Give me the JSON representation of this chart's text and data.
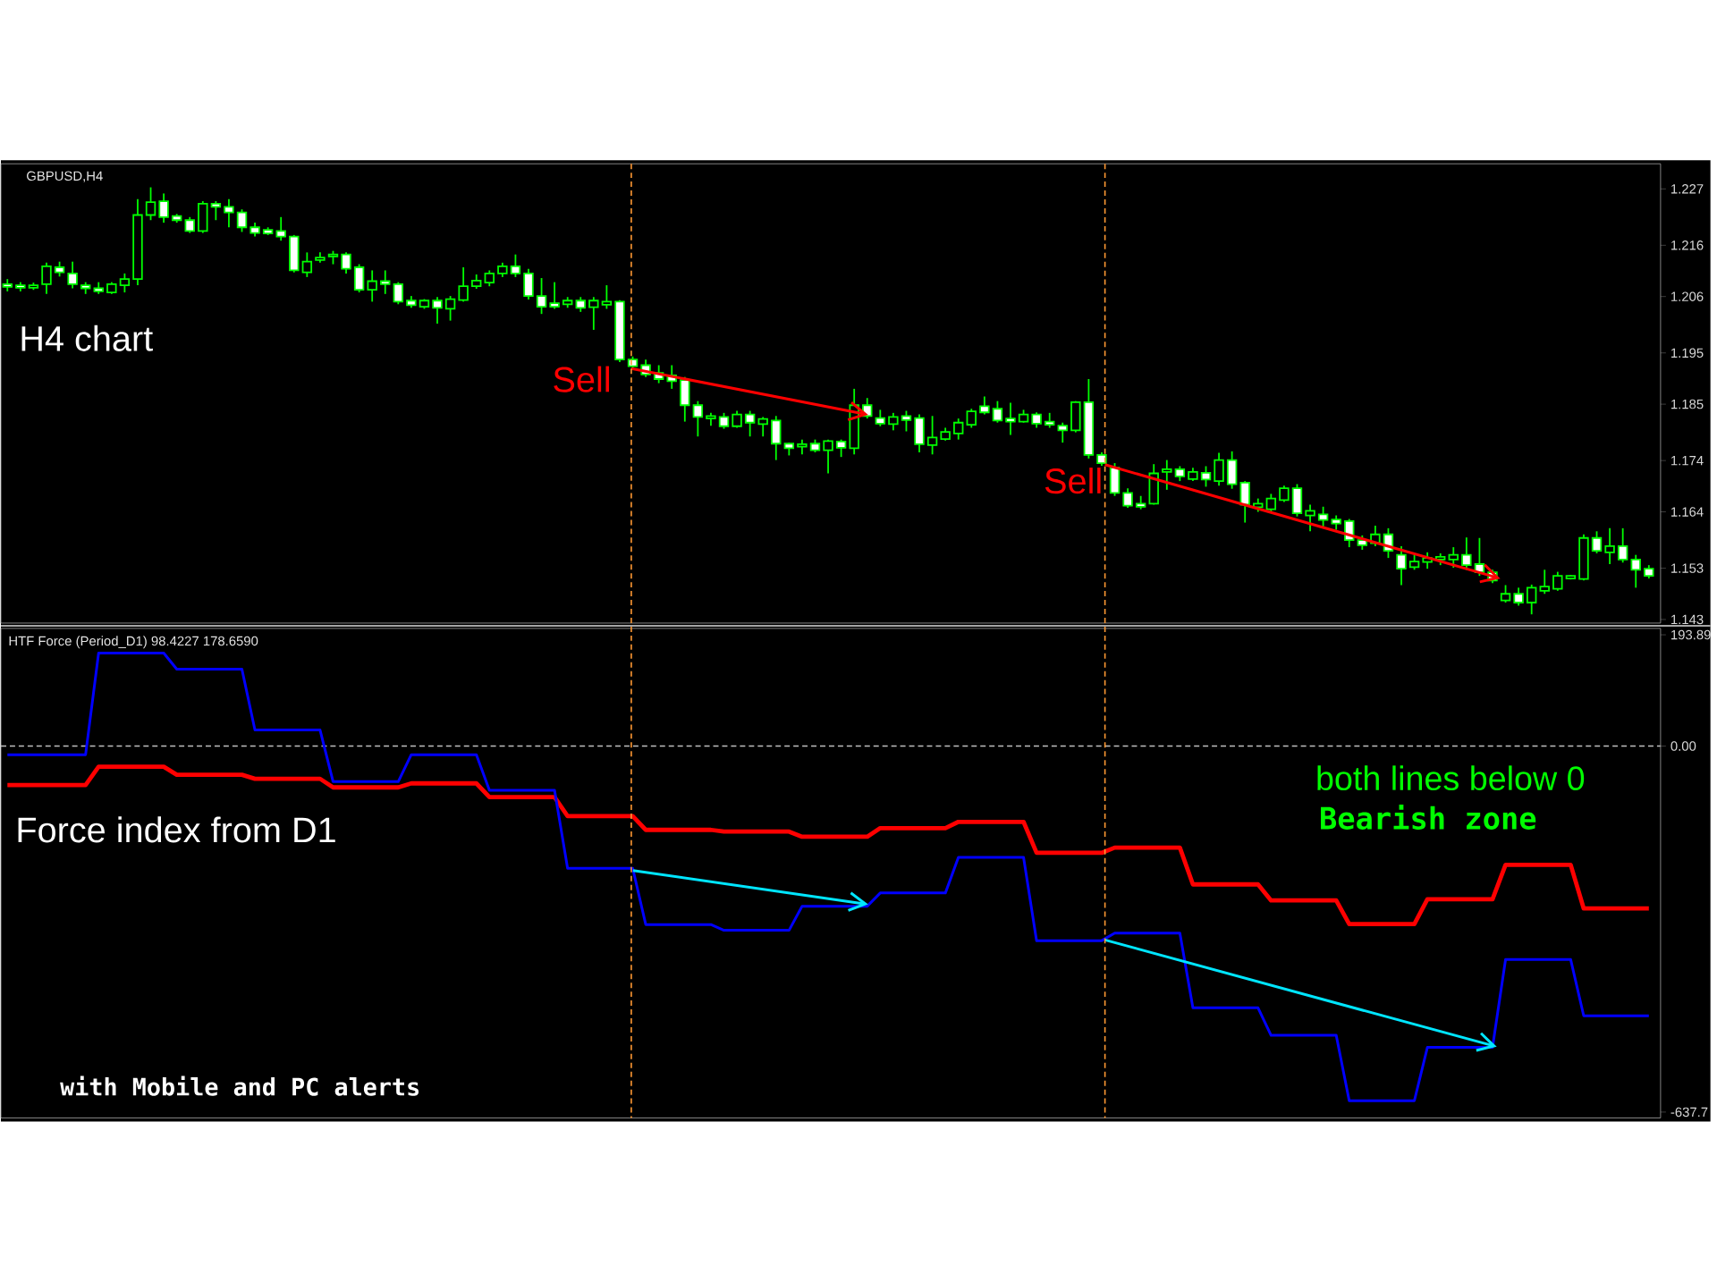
{
  "chart_data": [
    {
      "type": "candlestick",
      "title": "GBPUSD,H4",
      "color": "#00ff00",
      "categories": [
        null,
        null,
        null,
        null,
        null,
        null,
        null,
        null,
        null,
        null,
        null,
        null,
        null,
        null,
        null,
        null,
        null,
        null,
        null,
        null,
        null,
        null,
        null,
        null,
        null,
        null,
        null,
        null,
        null,
        null,
        null,
        null,
        null,
        null,
        null,
        null,
        null,
        null,
        null,
        null,
        null,
        null,
        null,
        null,
        null,
        null,
        null,
        null,
        null,
        null,
        null,
        null,
        null,
        null,
        null,
        null,
        null,
        null,
        null,
        null,
        null,
        null,
        null,
        null,
        null,
        null,
        null,
        null,
        null,
        null,
        null,
        null,
        null,
        null,
        null,
        null,
        null,
        null,
        null,
        null,
        null,
        null,
        null,
        null,
        null,
        null,
        null,
        null,
        null,
        null,
        null,
        null,
        null,
        null,
        null,
        null,
        null,
        null,
        null,
        null,
        null,
        null,
        null,
        null,
        null,
        null,
        null,
        null,
        null,
        null,
        null,
        null,
        null,
        null,
        null,
        null,
        null,
        null,
        null,
        null,
        null,
        null,
        null,
        null,
        null,
        null,
        null
      ],
      "ohlc": [
        [
          1.2084,
          1.2094,
          1.207,
          1.2079
        ],
        [
          1.2082,
          1.2088,
          1.207,
          1.2077
        ],
        [
          1.2077,
          1.2087,
          1.2073,
          1.2082
        ],
        [
          1.2084,
          1.2126,
          1.2065,
          1.2119
        ],
        [
          1.2117,
          1.2128,
          1.2099,
          1.2107
        ],
        [
          1.2105,
          1.2128,
          1.2076,
          1.2084
        ],
        [
          1.2082,
          1.2088,
          1.2065,
          1.2076
        ],
        [
          1.2076,
          1.2088,
          1.2065,
          1.207
        ],
        [
          1.2068,
          1.2088,
          1.2065,
          1.2084
        ],
        [
          1.2082,
          1.2105,
          1.2068,
          1.2094
        ],
        [
          1.2094,
          1.225,
          1.2082,
          1.2219
        ],
        [
          1.2219,
          1.2273,
          1.2209,
          1.2244
        ],
        [
          1.2246,
          1.2261,
          1.2204,
          1.2215
        ],
        [
          1.2217,
          1.2221,
          1.2204,
          1.2209
        ],
        [
          1.2209,
          1.2215,
          1.2184,
          1.2188
        ],
        [
          1.2188,
          1.2246,
          1.2184,
          1.2241
        ],
        [
          1.2241,
          1.2246,
          1.2209,
          1.2235
        ],
        [
          1.2235,
          1.225,
          1.2195,
          1.2224
        ],
        [
          1.2224,
          1.223,
          1.2186,
          1.2195
        ],
        [
          1.2195,
          1.2204,
          1.2177,
          1.2184
        ],
        [
          1.219,
          1.2195,
          1.218,
          1.2183
        ],
        [
          1.2188,
          1.2215,
          1.2169,
          1.2177
        ],
        [
          1.2177,
          1.218,
          1.2107,
          1.2111
        ],
        [
          1.2107,
          1.2146,
          1.2098,
          1.2128
        ],
        [
          1.2131,
          1.2146,
          1.2126,
          1.2136
        ],
        [
          1.2138,
          1.2149,
          1.2123,
          1.2142
        ],
        [
          1.2142,
          1.2146,
          1.2105,
          1.2114
        ],
        [
          1.2117,
          1.2123,
          1.2068,
          1.2073
        ],
        [
          1.2073,
          1.2111,
          1.205,
          1.209
        ],
        [
          1.209,
          1.2111,
          1.2065,
          1.2084
        ],
        [
          1.2084,
          1.2088,
          1.2045,
          1.205
        ],
        [
          1.2052,
          1.2061,
          1.2038,
          1.2043
        ],
        [
          1.204,
          1.2055,
          1.2036,
          1.2052
        ],
        [
          1.2052,
          1.2059,
          1.2007,
          1.2038
        ],
        [
          1.2036,
          1.2061,
          1.2013,
          1.2055
        ],
        [
          1.2053,
          1.2117,
          1.205,
          1.208
        ],
        [
          1.208,
          1.2103,
          1.2075,
          1.2091
        ],
        [
          1.2087,
          1.2111,
          1.208,
          1.2105
        ],
        [
          1.2105,
          1.2126,
          1.2098,
          1.2119
        ],
        [
          1.2119,
          1.2142,
          1.2098,
          1.2105
        ],
        [
          1.2105,
          1.2114,
          1.2054,
          1.2061
        ],
        [
          1.2061,
          1.2096,
          1.2026,
          1.204
        ],
        [
          1.2047,
          1.2088,
          1.2036,
          1.204
        ],
        [
          1.2045,
          1.2059,
          1.2038,
          1.2052
        ],
        [
          1.2052,
          1.2059,
          1.203,
          1.2038
        ],
        [
          1.2039,
          1.2059,
          1.1995,
          1.2052
        ],
        [
          1.2044,
          1.2082,
          1.2036,
          1.205
        ],
        [
          1.205,
          1.2053,
          1.1932,
          1.1937
        ],
        [
          1.1937,
          1.1943,
          1.192,
          1.1924
        ],
        [
          1.1926,
          1.1937,
          1.1903,
          1.1908
        ],
        [
          1.1911,
          1.1926,
          1.1891,
          1.1899
        ],
        [
          1.1906,
          1.1926,
          1.188,
          1.1895
        ],
        [
          1.1897,
          1.1903,
          1.1816,
          1.1848
        ],
        [
          1.1848,
          1.1856,
          1.1787,
          1.1825
        ],
        [
          1.1822,
          1.1833,
          1.1808,
          1.1827
        ],
        [
          1.1825,
          1.1833,
          1.1802,
          1.1807
        ],
        [
          1.1807,
          1.1837,
          1.1804,
          1.183
        ],
        [
          1.183,
          1.1837,
          1.1787,
          1.1814
        ],
        [
          1.1811,
          1.1825,
          1.1787,
          1.1821
        ],
        [
          1.1818,
          1.1827,
          1.1741,
          1.1773
        ],
        [
          1.1773,
          1.1775,
          1.175,
          1.1764
        ],
        [
          1.1767,
          1.1781,
          1.1752,
          1.1772
        ],
        [
          1.1773,
          1.1781,
          1.1756,
          1.176
        ],
        [
          1.176,
          1.1781,
          1.1715,
          1.1778
        ],
        [
          1.1777,
          1.1781,
          1.1747,
          1.1765
        ],
        [
          1.1764,
          1.188,
          1.1752,
          1.1848
        ],
        [
          1.1848,
          1.1862,
          1.1822,
          1.1827
        ],
        [
          1.1823,
          1.1839,
          1.1807,
          1.1812
        ],
        [
          1.1811,
          1.1833,
          1.1799,
          1.1825
        ],
        [
          1.1827,
          1.1837,
          1.1797,
          1.1819
        ],
        [
          1.1823,
          1.183,
          1.1756,
          1.1772
        ],
        [
          1.177,
          1.1827,
          1.1752,
          1.1785
        ],
        [
          1.1782,
          1.1804,
          1.1779,
          1.1796
        ],
        [
          1.1793,
          1.1822,
          1.1781,
          1.1814
        ],
        [
          1.181,
          1.1841,
          1.1804,
          1.1836
        ],
        [
          1.1846,
          1.1865,
          1.183,
          1.1834
        ],
        [
          1.1841,
          1.1856,
          1.1814,
          1.1818
        ],
        [
          1.1822,
          1.1853,
          1.179,
          1.1816
        ],
        [
          1.1816,
          1.1839,
          1.1814,
          1.183
        ],
        [
          1.183,
          1.1834,
          1.1804,
          1.1812
        ],
        [
          1.1816,
          1.1833,
          1.1804,
          1.181
        ],
        [
          1.1808,
          1.1814,
          1.1775,
          1.1799
        ],
        [
          1.1799,
          1.1856,
          1.1795,
          1.1854
        ],
        [
          1.1854,
          1.1899,
          1.1744,
          1.1751
        ],
        [
          1.1751,
          1.1756,
          1.173,
          1.1735
        ],
        [
          1.1726,
          1.1735,
          1.1671,
          1.1677
        ],
        [
          1.1677,
          1.1686,
          1.1648,
          1.1652
        ],
        [
          1.1656,
          1.1671,
          1.1645,
          1.165
        ],
        [
          1.1656,
          1.1733,
          1.1654,
          1.1715
        ],
        [
          1.1718,
          1.1741,
          1.1683,
          1.1723
        ],
        [
          1.1723,
          1.1729,
          1.17,
          1.1709
        ],
        [
          1.1704,
          1.1726,
          1.17,
          1.1718
        ],
        [
          1.1716,
          1.1729,
          1.1689,
          1.1703
        ],
        [
          1.17,
          1.1755,
          1.1691,
          1.1741
        ],
        [
          1.1741,
          1.1758,
          1.1685,
          1.1694
        ],
        [
          1.1697,
          1.17,
          1.1619,
          1.1654
        ],
        [
          1.1649,
          1.1666,
          1.164,
          1.1656
        ],
        [
          1.1645,
          1.1675,
          1.164,
          1.1666
        ],
        [
          1.1663,
          1.1691,
          1.1659,
          1.1686
        ],
        [
          1.1686,
          1.1694,
          1.1631,
          1.1637
        ],
        [
          1.1633,
          1.1654,
          1.1602,
          1.1642
        ],
        [
          1.1635,
          1.165,
          1.1608,
          1.1624
        ],
        [
          1.1625,
          1.1633,
          1.1605,
          1.1617
        ],
        [
          1.1622,
          1.1626,
          1.1571,
          1.1585
        ],
        [
          1.1585,
          1.1594,
          1.1566,
          1.1575
        ],
        [
          1.1579,
          1.1613,
          1.1573,
          1.1596
        ],
        [
          1.1596,
          1.1608,
          1.155,
          1.1564
        ],
        [
          1.1556,
          1.1573,
          1.1497,
          1.1529
        ],
        [
          1.1532,
          1.1556,
          1.1527,
          1.1543
        ],
        [
          1.1542,
          1.1561,
          1.1529,
          1.155
        ],
        [
          1.1547,
          1.1559,
          1.1536,
          1.1552
        ],
        [
          1.1547,
          1.1571,
          1.1531,
          1.1556
        ],
        [
          1.1556,
          1.159,
          1.1527,
          1.1536
        ],
        [
          1.1538,
          1.1589,
          1.1515,
          1.1522
        ],
        [
          1.1522,
          1.1527,
          1.1501,
          1.1506
        ],
        [
          1.1467,
          1.1497,
          1.1463,
          1.148
        ],
        [
          1.148,
          1.1492,
          1.1457,
          1.1463
        ],
        [
          1.1463,
          1.1498,
          1.144,
          1.1492
        ],
        [
          1.1486,
          1.1527,
          1.148,
          1.1494
        ],
        [
          1.149,
          1.1523,
          1.1486,
          1.1515
        ],
        [
          1.151,
          1.1517,
          1.1508,
          1.1515
        ],
        [
          1.1509,
          1.1596,
          1.1506,
          1.1589
        ],
        [
          1.1589,
          1.1602,
          1.1559,
          1.1564
        ],
        [
          1.1561,
          1.1608,
          1.1538,
          1.1573
        ],
        [
          1.1573,
          1.1608,
          1.1541,
          1.1547
        ],
        [
          1.1547,
          1.1556,
          1.1492,
          1.1527
        ],
        [
          1.1529,
          1.1536,
          1.151,
          1.1515
        ]
      ],
      "ylim": [
        1.1423,
        1.2319
      ],
      "yticks": [
        1.227,
        1.216,
        1.206,
        1.195,
        1.185,
        1.174,
        1.164,
        1.153,
        1.143
      ],
      "tick_labels": "y",
      "annotations": [
        "H4 chart",
        "Sell",
        "Sell"
      ]
    },
    {
      "type": "line",
      "title": "HTF Force (Period_D1) 98.4227 178.6590",
      "categories": [
        null,
        null,
        null,
        null,
        null,
        null,
        null,
        null,
        null,
        null,
        null,
        null,
        null,
        null,
        null,
        null,
        null,
        null,
        null,
        null,
        null,
        null,
        null,
        null,
        null,
        null,
        null,
        null,
        null,
        null,
        null,
        null,
        null,
        null,
        null,
        null,
        null,
        null,
        null,
        null,
        null,
        null,
        null,
        null,
        null,
        null,
        null,
        null,
        null,
        null,
        null,
        null,
        null,
        null,
        null,
        null,
        null,
        null,
        null,
        null,
        null,
        null,
        null,
        null,
        null,
        null,
        null,
        null,
        null,
        null,
        null,
        null,
        null,
        null,
        null,
        null,
        null,
        null,
        null,
        null,
        null,
        null,
        null,
        null,
        null,
        null,
        null,
        null,
        null,
        null,
        null,
        null,
        null,
        null,
        null,
        null,
        null,
        null,
        null,
        null,
        null,
        null,
        null,
        null,
        null,
        null,
        null,
        null,
        null,
        null,
        null,
        null,
        null,
        null,
        null,
        null,
        null,
        null,
        null,
        null,
        null,
        null,
        null,
        null,
        null,
        null,
        null
      ],
      "series": [
        {
          "color": "#ff0000",
          "values": [
            -68,
            -68,
            -68,
            -68,
            -68,
            -68,
            -68,
            -36,
            -36,
            -36,
            -36,
            -36,
            -36,
            -50,
            -50,
            -50,
            -50,
            -50,
            -50,
            -57,
            -57,
            -57,
            -57,
            -57,
            -57,
            -72,
            -72,
            -72,
            -72,
            -72,
            -72,
            -65,
            -65,
            -65,
            -65,
            -65,
            -65,
            -89,
            -89,
            -89,
            -89,
            -89,
            -89,
            -122,
            -122,
            -122,
            -122,
            -122,
            -122,
            -146,
            -146,
            -146,
            -146,
            -146,
            -146,
            -149,
            -149,
            -149,
            -149,
            -149,
            -149,
            -158,
            -158,
            -158,
            -158,
            -158,
            -158,
            -143,
            -143,
            -143,
            -143,
            -143,
            -143,
            -132,
            -132,
            -132,
            -132,
            -132,
            -132,
            -186,
            -186,
            -186,
            -186,
            -186,
            -186,
            -177,
            -177,
            -177,
            -177,
            -177,
            -177,
            -241,
            -241,
            -241,
            -241,
            -241,
            -241,
            -269,
            -269,
            -269,
            -269,
            -269,
            -269,
            -310,
            -310,
            -310,
            -310,
            -310,
            -310,
            -267,
            -267,
            -267,
            -267,
            -267,
            -267,
            -207,
            -207,
            -207,
            -207,
            -207,
            -207,
            -283,
            -283,
            -283,
            -283,
            -283,
            -283
          ]
        },
        {
          "color": "#0000ff",
          "values": [
            -15,
            -15,
            -15,
            -15,
            -15,
            -15,
            -15,
            162,
            162,
            162,
            162,
            162,
            162,
            134,
            134,
            134,
            134,
            134,
            134,
            28,
            28,
            28,
            28,
            28,
            28,
            -62,
            -62,
            -62,
            -62,
            -62,
            -62,
            -15,
            -15,
            -15,
            -15,
            -15,
            -15,
            -77,
            -77,
            -77,
            -77,
            -77,
            -77,
            -213,
            -213,
            -213,
            -213,
            -213,
            -213,
            -311,
            -311,
            -311,
            -311,
            -311,
            -311,
            -321,
            -321,
            -321,
            -321,
            -321,
            -321,
            -279,
            -279,
            -279,
            -279,
            -279,
            -279,
            -256,
            -256,
            -256,
            -256,
            -256,
            -256,
            -194,
            -194,
            -194,
            -194,
            -194,
            -194,
            -339,
            -339,
            -339,
            -339,
            -339,
            -339,
            -326,
            -326,
            -326,
            -326,
            -326,
            -326,
            -456,
            -456,
            -456,
            -456,
            -456,
            -456,
            -504,
            -504,
            -504,
            -504,
            -504,
            -504,
            -618,
            -618,
            -618,
            -618,
            -618,
            -618,
            -525,
            -525,
            -525,
            -525,
            -525,
            -525,
            -372,
            -372,
            -372,
            -372,
            -372,
            -372,
            -470,
            -470,
            -470,
            -470,
            -470,
            -470
          ]
        }
      ],
      "ylim": [
        -648,
        205
      ],
      "yticks": [
        193.89,
        {
          "value": 0,
          "label": "0.00"
        },
        -637.7
      ],
      "tick_labels": "y",
      "marker": "none",
      "line_style": "solid",
      "ref_lines": [
        {
          "axis": "y",
          "value": 0,
          "color": "#c0c0c0",
          "line_style": "dashed"
        }
      ],
      "annotations": [
        "Force index from D1",
        "both lines below 0",
        "Bearish zone",
        "with Mobile and PC alerts"
      ]
    }
  ]
}
